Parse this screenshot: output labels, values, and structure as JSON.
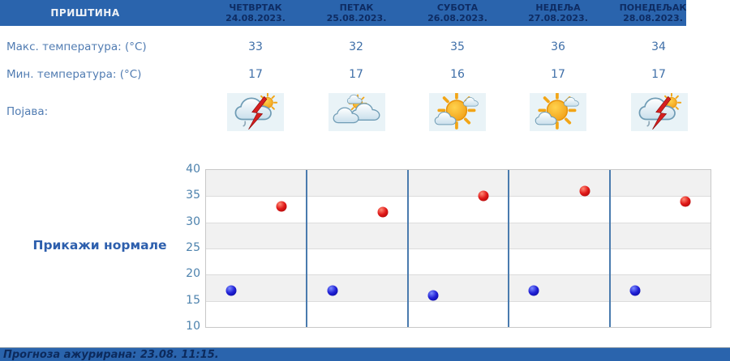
{
  "station": "ПРИШТИНА",
  "header": {
    "days": [
      {
        "name": "ЧЕТВРТАК",
        "date": "24.08.2023."
      },
      {
        "name": "ПЕТАК",
        "date": "25.08.2023."
      },
      {
        "name": "СУБОТА",
        "date": "26.08.2023."
      },
      {
        "name": "НЕДЕЉА",
        "date": "27.08.2023."
      },
      {
        "name": "ПОНЕДЕЉАК",
        "date": "28.08.2023."
      }
    ]
  },
  "rows": {
    "max_label": "Макс. температура: (°C)",
    "min_label": "Мин. температура: (°C)",
    "phenomenon_label": "Појава:"
  },
  "forecast": {
    "max": [
      "33",
      "32",
      "35",
      "36",
      "34"
    ],
    "min": [
      "17",
      "17",
      "16",
      "17",
      "17"
    ],
    "icons": [
      "thunder-sun",
      "cloudy-sun",
      "sunny-clouds",
      "sunny-clouds",
      "thunder-sun"
    ]
  },
  "normals_button": "Прикажи нормале",
  "footer": {
    "updated_text": "Прогноза ажурирана:  23.08. 11:15."
  },
  "colors": {
    "header_bg": "#2a64ad",
    "header_text": "#0e2c63",
    "label_text": "#517cb2",
    "value_text": "#3f6fa8",
    "max_dot": "#cc1414",
    "min_dot": "#1414cc",
    "separator": "#4a7bae",
    "band_gray": "#f1f1f1",
    "footer_bg": "#2a64ad"
  },
  "chart_data": {
    "type": "scatter",
    "x_categories": [
      "24.08.2023.",
      "25.08.2023.",
      "26.08.2023.",
      "27.08.2023.",
      "28.08.2023."
    ],
    "series": [
      {
        "name": "Макс. температура (°C)",
        "color": "#cc1414",
        "values": [
          33,
          32,
          35,
          36,
          34
        ],
        "x_offset_in_day": 0.75
      },
      {
        "name": "Мин. температура (°C)",
        "color": "#1414cc",
        "values": [
          17,
          17,
          16,
          17,
          17
        ],
        "x_offset_in_day": 0.25
      }
    ],
    "ylim": [
      10,
      40
    ],
    "yticks": [
      40,
      35,
      30,
      25,
      20,
      15,
      10
    ],
    "grid": true,
    "band_fill_order": [
      "gray",
      "white",
      "gray",
      "white",
      "gray",
      "white"
    ],
    "legend": "none"
  }
}
